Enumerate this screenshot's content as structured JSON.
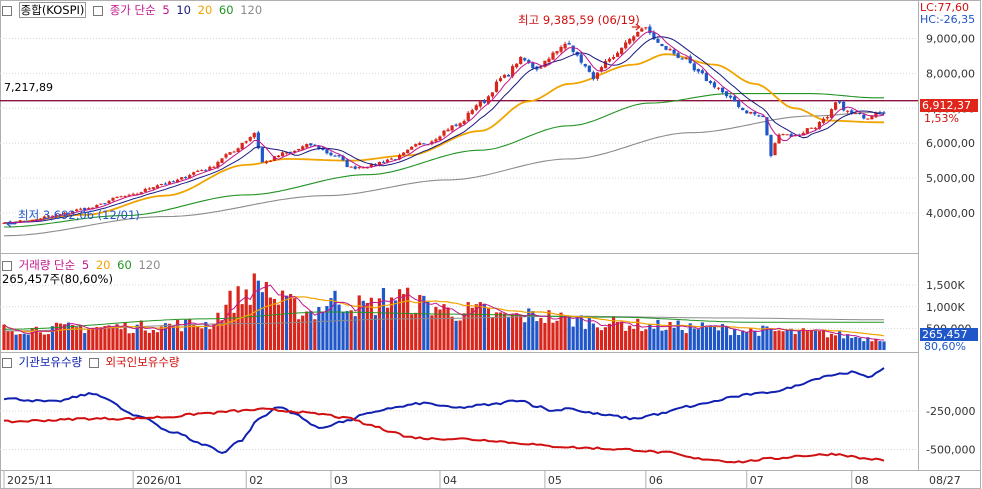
{
  "header": {
    "chk_icon": "checkbox-icon",
    "market": "종합(KOSPI)",
    "price_ma_label": "종가 단순",
    "price_ma_periods": [
      "5",
      "10",
      "20",
      "60",
      "120"
    ],
    "vol_label": "거래량 단순",
    "vol_ma_periods": [
      "5",
      "20",
      "60",
      "120"
    ],
    "vol_current": "265,457주(80,60%)",
    "holding_labels": [
      "기관보유수량",
      "외국인보유수량"
    ]
  },
  "badges": {
    "lc": "LC:77,60",
    "hc": "HC:-26,35",
    "hline_value": "7,217,89",
    "current_price": "6,912,37",
    "current_change": "1,53%",
    "current_volume": "265,457",
    "current_volume_pct": "80,60%",
    "high_marker": "최고 9,385,59 (06/19)",
    "low_marker": "최저 3,692,06 (12/01)"
  },
  "colors": {
    "up": "#d8261c",
    "down": "#1f56c8",
    "ma5": "#c0178c",
    "ma10": "#1a1a80",
    "ma20": "#f0a400",
    "ma60": "#239323",
    "ma120": "#8c8c8c",
    "inst": "#1020b0",
    "foreign": "#d01010",
    "hline": "#8b1040"
  },
  "chart_data": [
    {
      "type": "candlestick",
      "title": "종합(KOSPI)",
      "y_ticks": [
        "9,000,00",
        "8,000,00",
        "7,000,00",
        "6,000,00",
        "5,000,00",
        "4,000,00"
      ],
      "y_tick_values": [
        9000,
        8000,
        7000,
        6000,
        5000,
        4000
      ],
      "ylim": [
        3000,
        9700
      ],
      "hline": 7217.89,
      "high": 9385.59,
      "low": 3692.06,
      "close_anchors": [
        [
          0,
          3720
        ],
        [
          6,
          3780
        ],
        [
          12,
          3920
        ],
        [
          20,
          4120
        ],
        [
          30,
          4480
        ],
        [
          40,
          4850
        ],
        [
          50,
          5250
        ],
        [
          56,
          5700
        ],
        [
          60,
          6080
        ],
        [
          62,
          6300
        ],
        [
          64,
          5450
        ],
        [
          70,
          5720
        ],
        [
          76,
          5950
        ],
        [
          82,
          5650
        ],
        [
          86,
          5300
        ],
        [
          90,
          5350
        ],
        [
          96,
          5550
        ],
        [
          104,
          6000
        ],
        [
          112,
          6500
        ],
        [
          118,
          7150
        ],
        [
          124,
          7900
        ],
        [
          128,
          8400
        ],
        [
          132,
          8150
        ],
        [
          136,
          8550
        ],
        [
          140,
          8900
        ],
        [
          142,
          8450
        ],
        [
          146,
          7900
        ],
        [
          150,
          8350
        ],
        [
          154,
          8850
        ],
        [
          158,
          9300
        ],
        [
          164,
          8700
        ],
        [
          168,
          8450
        ],
        [
          172,
          8000
        ],
        [
          176,
          7650
        ],
        [
          180,
          7250
        ],
        [
          184,
          6900
        ],
        [
          188,
          6750
        ],
        [
          190,
          5650
        ],
        [
          192,
          6300
        ],
        [
          196,
          6200
        ],
        [
          200,
          6450
        ],
        [
          204,
          6700
        ],
        [
          206,
          7150
        ],
        [
          210,
          6850
        ],
        [
          214,
          6750
        ],
        [
          216,
          6912
        ]
      ],
      "ma20_anchors": [
        [
          0,
          3720
        ],
        [
          20,
          3950
        ],
        [
          40,
          4500
        ],
        [
          60,
          5380
        ],
        [
          70,
          5550
        ],
        [
          86,
          5500
        ],
        [
          100,
          5650
        ],
        [
          118,
          6350
        ],
        [
          130,
          7200
        ],
        [
          140,
          7700
        ],
        [
          156,
          8250
        ],
        [
          164,
          8550
        ],
        [
          176,
          8250
        ],
        [
          186,
          7700
        ],
        [
          196,
          7000
        ],
        [
          204,
          6650
        ],
        [
          216,
          6600
        ]
      ],
      "ma60_anchors": [
        [
          0,
          3600
        ],
        [
          30,
          3930
        ],
        [
          60,
          4520
        ],
        [
          90,
          5100
        ],
        [
          118,
          5800
        ],
        [
          140,
          6500
        ],
        [
          160,
          7150
        ],
        [
          180,
          7420
        ],
        [
          200,
          7420
        ],
        [
          216,
          7300
        ]
      ],
      "ma120_anchors": [
        [
          0,
          3350
        ],
        [
          40,
          3900
        ],
        [
          80,
          4500
        ],
        [
          110,
          4950
        ],
        [
          140,
          5550
        ],
        [
          170,
          6300
        ],
        [
          200,
          6780
        ],
        [
          216,
          6880
        ]
      ]
    },
    {
      "type": "bar",
      "title": "거래량",
      "y_ticks": [
        "1,500K",
        "1,000K",
        "500,000"
      ],
      "y_tick_values": [
        1500,
        1000,
        500
      ],
      "ylim": [
        0,
        1850
      ],
      "vol_anchors": [
        [
          0,
          480
        ],
        [
          30,
          530
        ],
        [
          50,
          600
        ],
        [
          58,
          1200
        ],
        [
          62,
          1450
        ],
        [
          64,
          1550
        ],
        [
          68,
          1100
        ],
        [
          76,
          880
        ],
        [
          82,
          1150
        ],
        [
          90,
          1000
        ],
        [
          96,
          1250
        ],
        [
          104,
          1050
        ],
        [
          112,
          880
        ],
        [
          118,
          900
        ],
        [
          124,
          750
        ],
        [
          132,
          800
        ],
        [
          140,
          700
        ],
        [
          150,
          620
        ],
        [
          160,
          560
        ],
        [
          172,
          520
        ],
        [
          186,
          450
        ],
        [
          200,
          400
        ],
        [
          216,
          265
        ]
      ],
      "ma60_anchors": [
        [
          0,
          480
        ],
        [
          50,
          720
        ],
        [
          80,
          880
        ],
        [
          110,
          830
        ],
        [
          150,
          760
        ],
        [
          186,
          640
        ],
        [
          216,
          640
        ]
      ],
      "ma120_anchors": [
        [
          0,
          440
        ],
        [
          60,
          610
        ],
        [
          100,
          720
        ],
        [
          140,
          780
        ],
        [
          180,
          740
        ],
        [
          216,
          700
        ]
      ]
    },
    {
      "type": "line",
      "series": [
        {
          "name": "기관보유수량",
          "anchors": [
            [
              0,
              -170
            ],
            [
              12,
              -190
            ],
            [
              22,
              -140
            ],
            [
              34,
              -290
            ],
            [
              42,
              -390
            ],
            [
              50,
              -470
            ],
            [
              54,
              -520
            ],
            [
              58,
              -450
            ],
            [
              64,
              -290
            ],
            [
              68,
              -220
            ],
            [
              72,
              -270
            ],
            [
              78,
              -360
            ],
            [
              84,
              -320
            ],
            [
              90,
              -270
            ],
            [
              96,
              -230
            ],
            [
              104,
              -200
            ],
            [
              112,
              -230
            ],
            [
              120,
              -210
            ],
            [
              128,
              -180
            ],
            [
              132,
              -220
            ],
            [
              136,
              -250
            ],
            [
              140,
              -230
            ],
            [
              144,
              -260
            ],
            [
              150,
              -280
            ],
            [
              156,
              -300
            ],
            [
              162,
              -270
            ],
            [
              170,
              -220
            ],
            [
              176,
              -190
            ],
            [
              180,
              -160
            ],
            [
              186,
              -140
            ],
            [
              192,
              -120
            ],
            [
              196,
              -90
            ],
            [
              200,
              -50
            ],
            [
              204,
              -20
            ],
            [
              210,
              0
            ],
            [
              214,
              -30
            ],
            [
              218,
              25
            ]
          ]
        },
        {
          "name": "외국인보유수량",
          "anchors": [
            [
              0,
              -320
            ],
            [
              12,
              -310
            ],
            [
              20,
              -300
            ],
            [
              30,
              -300
            ],
            [
              40,
              -290
            ],
            [
              50,
              -265
            ],
            [
              58,
              -250
            ],
            [
              64,
              -240
            ],
            [
              70,
              -250
            ],
            [
              78,
              -270
            ],
            [
              86,
              -300
            ],
            [
              90,
              -340
            ],
            [
              96,
              -380
            ],
            [
              100,
              -420
            ],
            [
              106,
              -430
            ],
            [
              112,
              -430
            ],
            [
              120,
              -440
            ],
            [
              128,
              -460
            ],
            [
              136,
              -480
            ],
            [
              144,
              -490
            ],
            [
              154,
              -500
            ],
            [
              164,
              -520
            ],
            [
              172,
              -560
            ],
            [
              182,
              -580
            ],
            [
              190,
              -560
            ],
            [
              198,
              -540
            ],
            [
              206,
              -530
            ],
            [
              214,
              -560
            ],
            [
              218,
              -570
            ]
          ]
        }
      ],
      "y_ticks": [
        "-250,000",
        "-500,000"
      ],
      "y_tick_values": [
        -250,
        -500
      ],
      "ylim": [
        -620,
        80
      ]
    }
  ],
  "x_axis": {
    "labels": [
      "2025/11",
      "2026/01",
      "02",
      "03",
      "04",
      "05",
      "06",
      "07",
      "08",
      "08/27"
    ],
    "label_index": [
      0,
      32,
      60,
      81,
      108,
      134,
      159,
      184,
      210,
      218
    ]
  }
}
